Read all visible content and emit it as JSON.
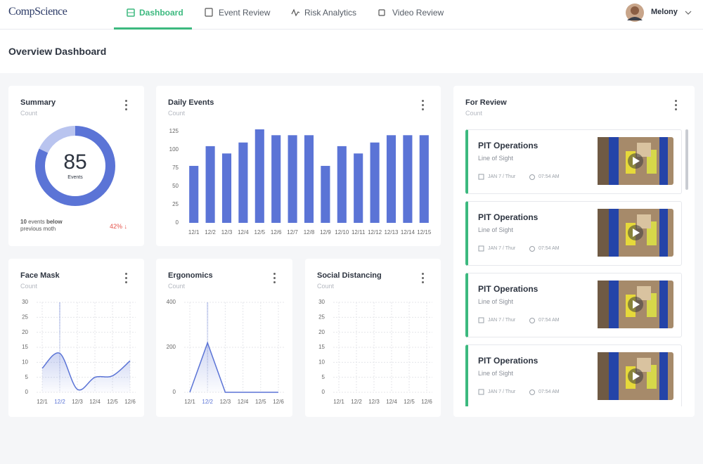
{
  "nav": {
    "brand": "CompScience",
    "tabs": [
      "Dashboard",
      "Event Review",
      "Risk Analytics",
      "Video Review"
    ],
    "user": "Melony"
  },
  "page_title": "Overview Dashboard",
  "summary": {
    "title": "Summary",
    "subtitle": "Count",
    "chart_data": {
      "type": "donut",
      "values": [
        82,
        18
      ],
      "colors": [
        "#5b74d6",
        "#b9c4ef"
      ],
      "center_value": 85,
      "center_label": "Events"
    },
    "note_count": "10",
    "note_text": "events",
    "note_bold": "below",
    "note_rest": "previous moth",
    "change": "42% ↓"
  },
  "daily_events": {
    "title": "Daily Events",
    "subtitle": "Count",
    "chart_data": {
      "type": "bar",
      "color": "#5b74d6",
      "categories": [
        "12/1",
        "12/2",
        "12/3",
        "12/4",
        "12/5",
        "12/6",
        "12/7",
        "12/8",
        "12/9",
        "12/10",
        "12/11",
        "12/12",
        "12/13",
        "12/14",
        "12/15"
      ],
      "values": [
        78,
        105,
        95,
        110,
        128,
        120,
        120,
        120,
        78,
        105,
        95,
        110,
        120,
        120,
        120
      ],
      "ylim": [
        0,
        128
      ],
      "yticks": [
        0,
        25,
        50,
        75,
        100,
        125
      ],
      "grid": false
    }
  },
  "face_mask": {
    "title": "Face Mask",
    "subtitle": "Count",
    "chart_data": {
      "type": "line",
      "smooth": true,
      "color": "#5b74d6",
      "categories": [
        "12/1",
        "12/2",
        "12/3",
        "12/4",
        "12/5",
        "12/6"
      ],
      "values": [
        8,
        13,
        1,
        5,
        5.5,
        10.5
      ],
      "highlight_index": 1,
      "ylim": [
        0,
        30
      ],
      "yticks": [
        0,
        5,
        10,
        15,
        20,
        25,
        30
      ],
      "grid": true
    }
  },
  "ergonomics": {
    "title": "Ergonomics",
    "subtitle": "Count",
    "chart_data": {
      "type": "line",
      "smooth": false,
      "color": "#5b74d6",
      "categories": [
        "12/1",
        "12/2",
        "12/3",
        "12/4",
        "12/5",
        "12/6"
      ],
      "values": [
        0,
        220,
        0,
        0,
        0,
        0
      ],
      "highlight_index": 1,
      "ylim": [
        0,
        400
      ],
      "yticks": [
        0,
        200,
        400
      ],
      "grid": true
    }
  },
  "social_distancing": {
    "title": "Social Distancing",
    "subtitle": "Count",
    "chart_data": {
      "type": "line",
      "color": "#5b74d6",
      "categories": [
        "12/1",
        "12/2",
        "12/3",
        "12/4",
        "12/5",
        "12/6"
      ],
      "ylim": [
        0,
        30
      ],
      "yticks": [
        0,
        5,
        10,
        15,
        20,
        25,
        30
      ],
      "grid": true
    }
  },
  "for_review": {
    "title": "For Review",
    "subtitle": "Count",
    "items": [
      {
        "title": "PIT Operations",
        "subtitle": "Line of Sight",
        "date": "JAN 7 / Thur",
        "time": "07:54 AM"
      },
      {
        "title": "PIT Operations",
        "subtitle": "Line of Sight",
        "date": "JAN 7 / Thur",
        "time": "07:54 AM"
      },
      {
        "title": "PIT Operations",
        "subtitle": "Line of Sight",
        "date": "JAN 7 / Thur",
        "time": "07:54 AM"
      },
      {
        "title": "PIT Operations",
        "subtitle": "Line of Sight",
        "date": "JAN 7 / Thur",
        "time": "07:54 AM"
      }
    ]
  }
}
